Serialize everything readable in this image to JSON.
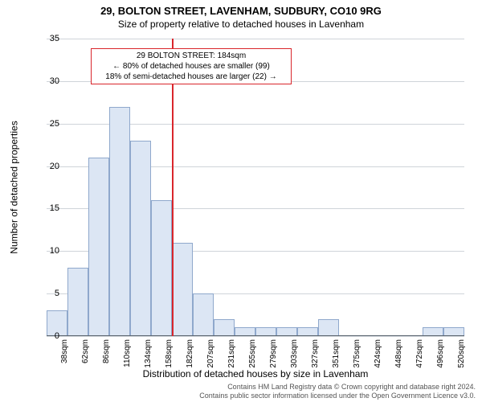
{
  "title": "29, BOLTON STREET, LAVENHAM, SUDBURY, CO10 9RG",
  "subtitle": "Size of property relative to detached houses in Lavenham",
  "ylabel": "Number of detached properties",
  "xlabel": "Distribution of detached houses by size in Lavenham",
  "chart": {
    "type": "histogram",
    "ylim": [
      0,
      35
    ],
    "ytick_step": 5,
    "yticks": [
      0,
      5,
      10,
      15,
      20,
      25,
      30,
      35
    ],
    "x_categories": [
      "38sqm",
      "62sqm",
      "86sqm",
      "110sqm",
      "134sqm",
      "158sqm",
      "182sqm",
      "207sqm",
      "231sqm",
      "255sqm",
      "279sqm",
      "303sqm",
      "327sqm",
      "351sqm",
      "375sqm",
      "424sqm",
      "448sqm",
      "472sqm",
      "496sqm",
      "520sqm"
    ],
    "values": [
      3,
      8,
      21,
      27,
      23,
      16,
      11,
      5,
      2,
      1,
      1,
      1,
      1,
      2,
      0,
      0,
      0,
      0,
      1,
      1
    ],
    "bar_fill": "#dce6f4",
    "bar_border": "#8fa8cc",
    "grid_color": "#cfd4d9",
    "axis_color": "#5c6670",
    "background_color": "#ffffff",
    "marker_bin_index": 6,
    "marker_color": "#d9262c",
    "bar_width_ratio": 1.0
  },
  "annotation": {
    "line1": "29 BOLTON STREET: 184sqm",
    "line2": "← 80% of detached houses are smaller (99)",
    "line3": "18% of semi-detached houses are larger (22) →",
    "border_color": "#d9262c",
    "bg_color": "#ffffff"
  },
  "footer": {
    "line1": "Contains HM Land Registry data © Crown copyright and database right 2024.",
    "line2": "Contains public sector information licensed under the Open Government Licence v3.0.",
    "color": "#555555"
  }
}
